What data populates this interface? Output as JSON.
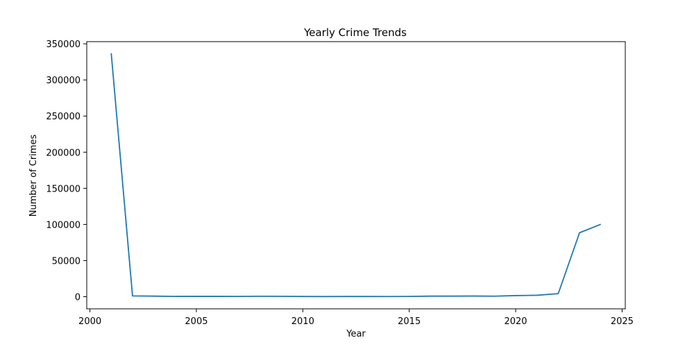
{
  "chart_data": {
    "type": "line",
    "title": "Yearly Crime Trends",
    "xlabel": "Year",
    "ylabel": "Number of Crimes",
    "xlim": [
      1999.85,
      2025.15
    ],
    "ylim": [
      -16800,
      353000
    ],
    "xticks": [
      2000,
      2005,
      2010,
      2015,
      2020,
      2025
    ],
    "yticks": [
      0,
      50000,
      100000,
      150000,
      200000,
      250000,
      300000,
      350000
    ],
    "grid": false,
    "legend": "none",
    "color": "#1f77b4",
    "series": [
      {
        "x": [
          2001,
          2002,
          2003,
          2004,
          2005,
          2006,
          2007,
          2008,
          2009,
          2010,
          2011,
          2012,
          2013,
          2014,
          2015,
          2016,
          2017,
          2018,
          2019,
          2020,
          2021,
          2022,
          2023,
          2024
        ],
        "values": [
          337000,
          1100,
          800,
          400,
          450,
          450,
          400,
          600,
          500,
          300,
          200,
          300,
          300,
          250,
          400,
          800,
          800,
          900,
          700,
          1500,
          2000,
          4200,
          88500,
          100200
        ]
      }
    ]
  }
}
